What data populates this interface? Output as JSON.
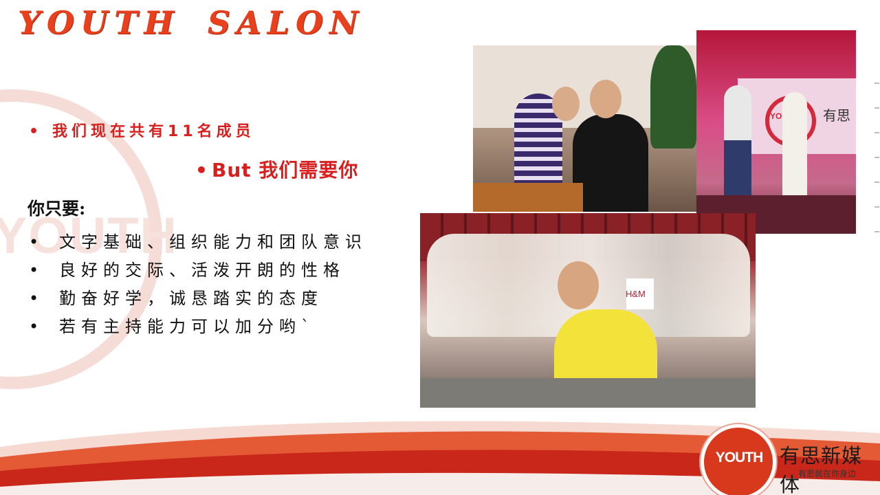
{
  "slide": {
    "title_left": "YOUTH",
    "title_right": "SALON",
    "watermark": "YOUTH",
    "bullet_symbol": "•",
    "member_line": "我们现在共有11名成员",
    "need_line": "But 我们需要你",
    "subheading": "你只要:",
    "requirements": [
      "文字基础、组织能力和团队意识",
      "良好的交际、活泼开朗的性格",
      "勤奋好学，诚恳踏实的态度",
      "若有主持能力可以加分哟`"
    ]
  },
  "photos": {
    "stage_sign": "有思",
    "stage_logo": "YOUTH",
    "bag_text": "H&M"
  },
  "logo": {
    "badge": "YOUTH",
    "name": "有思新媒体",
    "tagline": "有思就在你身边"
  },
  "colors": {
    "title": "#e8401c",
    "accent_red": "#d91e1e",
    "logo_red": "#d8381b"
  }
}
